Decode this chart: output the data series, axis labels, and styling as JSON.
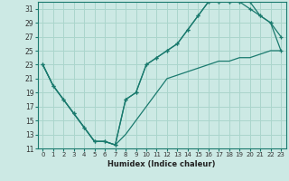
{
  "xlabel": "Humidex (Indice chaleur)",
  "background_color": "#cce9e4",
  "line_color": "#1a7a6e",
  "grid_color": "#aad5cc",
  "xlim": [
    -0.5,
    23.5
  ],
  "ylim": [
    11,
    32
  ],
  "yticks": [
    11,
    13,
    15,
    17,
    19,
    21,
    23,
    25,
    27,
    29,
    31
  ],
  "xticks": [
    0,
    1,
    2,
    3,
    4,
    5,
    6,
    7,
    8,
    9,
    10,
    11,
    12,
    13,
    14,
    15,
    16,
    17,
    18,
    19,
    20,
    21,
    22,
    23
  ],
  "line1_x": [
    0,
    1,
    2,
    3,
    4,
    5,
    6,
    7,
    8,
    9,
    10,
    11,
    12,
    13,
    14,
    15,
    16,
    17,
    18,
    19,
    20,
    21,
    22,
    23
  ],
  "line1_y": [
    23,
    20,
    18,
    16,
    14,
    12,
    12,
    11.5,
    18,
    19,
    23,
    24,
    25,
    26,
    28,
    30,
    32,
    32,
    32,
    32,
    32,
    30,
    29,
    25
  ],
  "line2_x": [
    0,
    1,
    2,
    3,
    4,
    5,
    6,
    7,
    8,
    9,
    10,
    11,
    12,
    13,
    14,
    15,
    16,
    17,
    18,
    19,
    20,
    21,
    22,
    23
  ],
  "line2_y": [
    23,
    20,
    18,
    16,
    14,
    12,
    12,
    11.5,
    18,
    19,
    23,
    24,
    25,
    26,
    28,
    30,
    32,
    32,
    32,
    32,
    31,
    30,
    29,
    27
  ],
  "line3_x": [
    0,
    1,
    2,
    3,
    4,
    5,
    6,
    7,
    8,
    9,
    10,
    11,
    12,
    13,
    14,
    15,
    16,
    17,
    18,
    19,
    20,
    21,
    22,
    23
  ],
  "line3_y": [
    23,
    20,
    18,
    16,
    14,
    12,
    12,
    11.5,
    13,
    15,
    17,
    19,
    21,
    21.5,
    22,
    22.5,
    23,
    23.5,
    23.5,
    24,
    24,
    24.5,
    25,
    25
  ]
}
